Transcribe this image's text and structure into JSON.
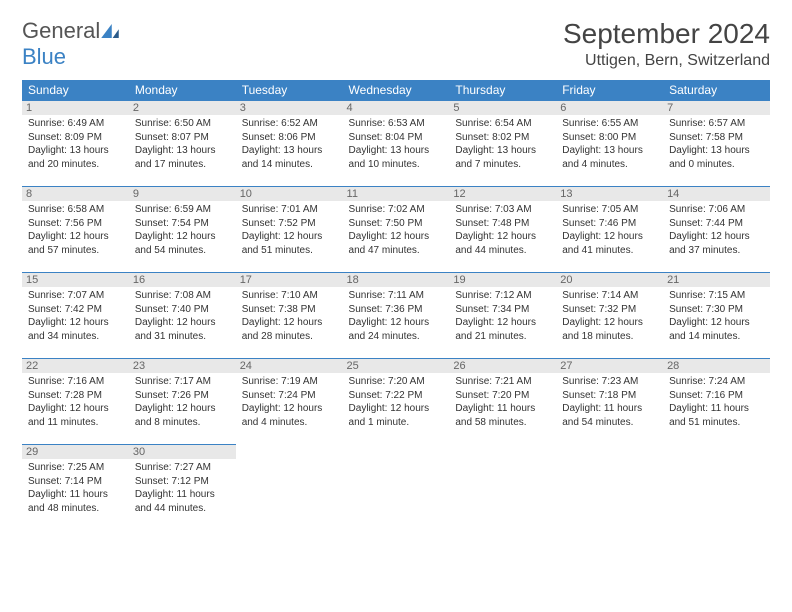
{
  "logo": {
    "general": "General",
    "blue": "Blue"
  },
  "title": "September 2024",
  "location": "Uttigen, Bern, Switzerland",
  "colors": {
    "header_bg": "#3b82c4",
    "header_fg": "#ffffff",
    "daynum_bg": "#e8e8e8",
    "border": "#3b82c4",
    "text": "#333333"
  },
  "day_labels": [
    "Sunday",
    "Monday",
    "Tuesday",
    "Wednesday",
    "Thursday",
    "Friday",
    "Saturday"
  ],
  "weeks": [
    [
      {
        "n": "1",
        "sr": "6:49 AM",
        "ss": "8:09 PM",
        "dl": "13 hours and 20 minutes."
      },
      {
        "n": "2",
        "sr": "6:50 AM",
        "ss": "8:07 PM",
        "dl": "13 hours and 17 minutes."
      },
      {
        "n": "3",
        "sr": "6:52 AM",
        "ss": "8:06 PM",
        "dl": "13 hours and 14 minutes."
      },
      {
        "n": "4",
        "sr": "6:53 AM",
        "ss": "8:04 PM",
        "dl": "13 hours and 10 minutes."
      },
      {
        "n": "5",
        "sr": "6:54 AM",
        "ss": "8:02 PM",
        "dl": "13 hours and 7 minutes."
      },
      {
        "n": "6",
        "sr": "6:55 AM",
        "ss": "8:00 PM",
        "dl": "13 hours and 4 minutes."
      },
      {
        "n": "7",
        "sr": "6:57 AM",
        "ss": "7:58 PM",
        "dl": "13 hours and 0 minutes."
      }
    ],
    [
      {
        "n": "8",
        "sr": "6:58 AM",
        "ss": "7:56 PM",
        "dl": "12 hours and 57 minutes."
      },
      {
        "n": "9",
        "sr": "6:59 AM",
        "ss": "7:54 PM",
        "dl": "12 hours and 54 minutes."
      },
      {
        "n": "10",
        "sr": "7:01 AM",
        "ss": "7:52 PM",
        "dl": "12 hours and 51 minutes."
      },
      {
        "n": "11",
        "sr": "7:02 AM",
        "ss": "7:50 PM",
        "dl": "12 hours and 47 minutes."
      },
      {
        "n": "12",
        "sr": "7:03 AM",
        "ss": "7:48 PM",
        "dl": "12 hours and 44 minutes."
      },
      {
        "n": "13",
        "sr": "7:05 AM",
        "ss": "7:46 PM",
        "dl": "12 hours and 41 minutes."
      },
      {
        "n": "14",
        "sr": "7:06 AM",
        "ss": "7:44 PM",
        "dl": "12 hours and 37 minutes."
      }
    ],
    [
      {
        "n": "15",
        "sr": "7:07 AM",
        "ss": "7:42 PM",
        "dl": "12 hours and 34 minutes."
      },
      {
        "n": "16",
        "sr": "7:08 AM",
        "ss": "7:40 PM",
        "dl": "12 hours and 31 minutes."
      },
      {
        "n": "17",
        "sr": "7:10 AM",
        "ss": "7:38 PM",
        "dl": "12 hours and 28 minutes."
      },
      {
        "n": "18",
        "sr": "7:11 AM",
        "ss": "7:36 PM",
        "dl": "12 hours and 24 minutes."
      },
      {
        "n": "19",
        "sr": "7:12 AM",
        "ss": "7:34 PM",
        "dl": "12 hours and 21 minutes."
      },
      {
        "n": "20",
        "sr": "7:14 AM",
        "ss": "7:32 PM",
        "dl": "12 hours and 18 minutes."
      },
      {
        "n": "21",
        "sr": "7:15 AM",
        "ss": "7:30 PM",
        "dl": "12 hours and 14 minutes."
      }
    ],
    [
      {
        "n": "22",
        "sr": "7:16 AM",
        "ss": "7:28 PM",
        "dl": "12 hours and 11 minutes."
      },
      {
        "n": "23",
        "sr": "7:17 AM",
        "ss": "7:26 PM",
        "dl": "12 hours and 8 minutes."
      },
      {
        "n": "24",
        "sr": "7:19 AM",
        "ss": "7:24 PM",
        "dl": "12 hours and 4 minutes."
      },
      {
        "n": "25",
        "sr": "7:20 AM",
        "ss": "7:22 PM",
        "dl": "12 hours and 1 minute."
      },
      {
        "n": "26",
        "sr": "7:21 AM",
        "ss": "7:20 PM",
        "dl": "11 hours and 58 minutes."
      },
      {
        "n": "27",
        "sr": "7:23 AM",
        "ss": "7:18 PM",
        "dl": "11 hours and 54 minutes."
      },
      {
        "n": "28",
        "sr": "7:24 AM",
        "ss": "7:16 PM",
        "dl": "11 hours and 51 minutes."
      }
    ],
    [
      {
        "n": "29",
        "sr": "7:25 AM",
        "ss": "7:14 PM",
        "dl": "11 hours and 48 minutes."
      },
      {
        "n": "30",
        "sr": "7:27 AM",
        "ss": "7:12 PM",
        "dl": "11 hours and 44 minutes."
      },
      null,
      null,
      null,
      null,
      null
    ]
  ],
  "labels": {
    "sunrise": "Sunrise: ",
    "sunset": "Sunset: ",
    "daylight": "Daylight: "
  }
}
